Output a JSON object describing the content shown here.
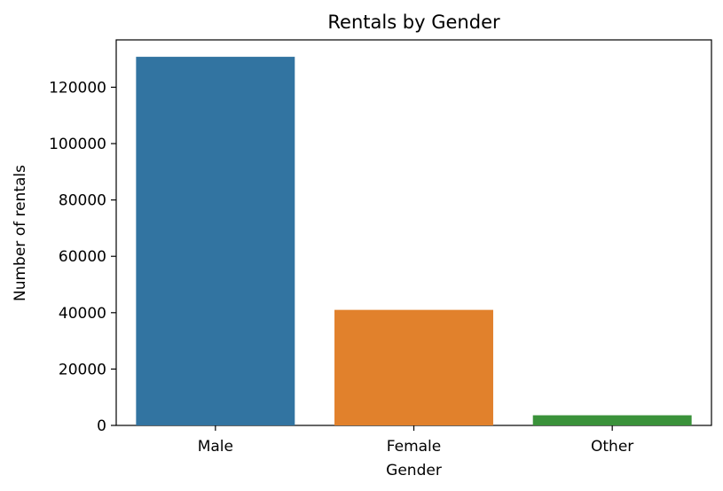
{
  "chart_data": {
    "type": "bar",
    "title": "Rentals by Gender",
    "xlabel": "Gender",
    "ylabel": "Number of rentals",
    "categories": [
      "Male",
      "Female",
      "Other"
    ],
    "values": [
      130800,
      41000,
      3600
    ],
    "colors": [
      "#3274a1",
      "#e1812c",
      "#3a923a"
    ],
    "ylim": [
      0,
      136800
    ],
    "yticks": [
      0,
      20000,
      40000,
      60000,
      80000,
      100000,
      120000
    ],
    "grid": false,
    "legend": "none"
  }
}
